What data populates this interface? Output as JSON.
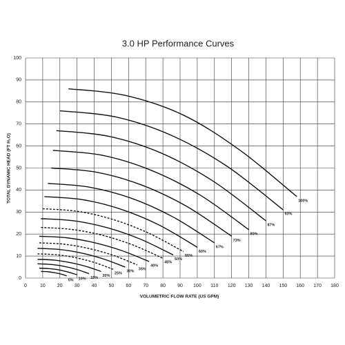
{
  "chart_data": {
    "type": "line",
    "title": "3.0 HP  Performance Curves",
    "x_label": "VOLUMETRIC FLOW RATE (US GPM)",
    "y_label": "TOTAL DYNAMIC HEAD (FT H₂O)",
    "xlim": [
      0,
      180
    ],
    "ylim": [
      0,
      100
    ],
    "xticks": [
      0,
      10,
      20,
      30,
      40,
      50,
      60,
      70,
      80,
      90,
      100,
      110,
      120,
      130,
      140,
      150,
      160,
      170,
      180
    ],
    "yticks": [
      0,
      10,
      20,
      30,
      40,
      50,
      60,
      70,
      80,
      90,
      100
    ],
    "grid": true,
    "color": "#111111",
    "series": [
      {
        "name": "100%",
        "dashed": false,
        "x": [
          25,
          58,
          92,
          125,
          158
        ],
        "values": [
          86,
          83,
          74,
          58,
          37
        ]
      },
      {
        "name": "93%",
        "dashed": false,
        "x": [
          20,
          52.5,
          85,
          117.5,
          150
        ],
        "values": [
          76,
          73.2,
          64.8,
          50.7,
          31
        ]
      },
      {
        "name": "87%",
        "dashed": false,
        "x": [
          18,
          48.5,
          79,
          109.5,
          140
        ],
        "values": [
          67,
          64.4,
          56.8,
          43.9,
          26
        ]
      },
      {
        "name": "80%",
        "dashed": false,
        "x": [
          16,
          44.5,
          73,
          101.5,
          130
        ],
        "values": [
          58,
          55.8,
          49,
          37.8,
          22
        ]
      },
      {
        "name": "73%",
        "dashed": false,
        "x": [
          15,
          41.3,
          67.5,
          93.8,
          120
        ],
        "values": [
          50,
          48.1,
          42.3,
          32.6,
          19
        ]
      },
      {
        "name": "67%",
        "dashed": false,
        "x": [
          13,
          37.3,
          61.5,
          85.8,
          110
        ],
        "values": [
          43,
          41.3,
          36.3,
          27.8,
          16
        ]
      },
      {
        "name": "60%",
        "dashed": false,
        "x": [
          11,
          33.3,
          55.5,
          77.8,
          100
        ],
        "values": [
          37,
          35.6,
          31.3,
          24.1,
          14
        ]
      },
      {
        "name": "55%",
        "dashed": true,
        "x": [
          10,
          30.5,
          51,
          71.5,
          92
        ],
        "values": [
          31.5,
          30.3,
          26.6,
          20.5,
          12
        ]
      },
      {
        "name": "50%",
        "dashed": false,
        "x": [
          9,
          28.3,
          47.5,
          66.8,
          86
        ],
        "values": [
          27,
          26,
          22.9,
          17.7,
          10.5
        ]
      },
      {
        "name": "45%",
        "dashed": true,
        "x": [
          9,
          26.8,
          44.5,
          62.3,
          80
        ],
        "values": [
          23,
          22.1,
          19.5,
          15.1,
          9
        ]
      },
      {
        "name": "40%",
        "dashed": false,
        "x": [
          8,
          24,
          40,
          56,
          72
        ],
        "values": [
          19,
          18.3,
          16.1,
          12.5,
          7.5
        ]
      },
      {
        "name": "35%",
        "dashed": true,
        "x": [
          8,
          22.3,
          36.5,
          50.8,
          65
        ],
        "values": [
          16,
          15.4,
          13.5,
          10.4,
          6
        ]
      },
      {
        "name": "30%",
        "dashed": false,
        "x": [
          7,
          19.8,
          32.5,
          45.3,
          58
        ],
        "values": [
          13.5,
          13,
          11.4,
          8.7,
          5
        ]
      },
      {
        "name": "25%",
        "dashed": true,
        "x": [
          7,
          18,
          29,
          40,
          51
        ],
        "values": [
          11,
          10.6,
          9.3,
          7.1,
          4
        ]
      },
      {
        "name": "20%",
        "dashed": false,
        "x": [
          7,
          16.3,
          25.5,
          34.8,
          44
        ],
        "values": [
          8.5,
          8.2,
          7.1,
          5.4,
          3
        ]
      },
      {
        "name": "15%",
        "dashed": false,
        "x": [
          7,
          14.5,
          22,
          29.5,
          37
        ],
        "values": [
          6.5,
          6.2,
          5.4,
          4,
          2
        ]
      },
      {
        "name": "10%",
        "dashed": false,
        "x": [
          8,
          13.5,
          19,
          24.5,
          30
        ],
        "values": [
          4.5,
          4.3,
          3.8,
          2.8,
          1.5
        ]
      },
      {
        "name": "5%",
        "dashed": false,
        "x": [
          9,
          12.8,
          16.5,
          20.3,
          24
        ],
        "values": [
          3,
          2.9,
          2.5,
          1.9,
          1
        ]
      }
    ]
  }
}
